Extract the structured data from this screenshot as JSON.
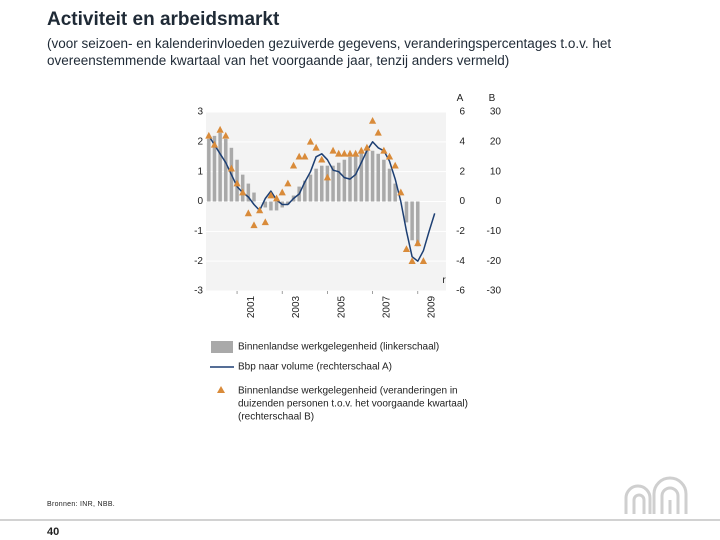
{
  "title": "Activiteit en arbeidsmarkt",
  "subtitle": "(voor seizoen- en kalenderinvloeden gezuiverde gegevens, veranderingspercentages t.o.v. het overeenstemmende kwartaal van het voorgaande jaar, tenzij anders vermeld)",
  "source": "Bronnen: INR, NBB.",
  "page_number": "40",
  "colors": {
    "bars": "#a9a9a9",
    "line": "#1d3f73",
    "markers": "#d98b3a",
    "grid": "#ffffff",
    "plot_bg": "#f3f3f3"
  },
  "chart_data": {
    "type": "bar",
    "x_start": 1999.75,
    "x_step": 0.25,
    "x_ticks": [
      "2001",
      "2003",
      "2005",
      "2007",
      "2009"
    ],
    "left_axis": {
      "ticks": [
        "3",
        "2",
        "1",
        "0",
        "-1",
        "-2",
        "-3"
      ],
      "ylim": [
        -3,
        3
      ]
    },
    "right_axis_a": {
      "header": "A",
      "ticks": [
        "6",
        "4",
        "2",
        "0",
        "-2",
        "-4",
        "-6"
      ],
      "ylim": [
        -6,
        6
      ]
    },
    "right_axis_b": {
      "header": "B",
      "ticks": [
        "30",
        "20",
        "10",
        "0",
        "-10",
        "-20",
        "-30"
      ],
      "ylim": [
        -30,
        30
      ]
    },
    "end_label": "r",
    "series": [
      {
        "name": "Binnenlandse werkgelegenheid (linkerschaal)",
        "type": "bar",
        "axis": "left",
        "values": [
          2.1,
          2.2,
          2.3,
          2.1,
          1.8,
          1.4,
          0.9,
          0.6,
          0.3,
          0.0,
          -0.2,
          -0.3,
          -0.3,
          -0.2,
          -0.1,
          0.2,
          0.5,
          0.7,
          0.9,
          1.1,
          1.2,
          1.2,
          1.2,
          1.3,
          1.4,
          1.5,
          1.6,
          1.7,
          1.8,
          1.7,
          1.6,
          1.4,
          1.1,
          0.6,
          0.0,
          -0.7,
          -1.3,
          -1.5
        ]
      },
      {
        "name": "Bbp naar volume (rechterschaal A)",
        "type": "line",
        "axis": "right_a",
        "values": [
          4.4,
          3.8,
          3.2,
          2.6,
          1.8,
          1.0,
          0.6,
          0.3,
          -0.2,
          -0.6,
          0.2,
          0.7,
          0.1,
          -0.2,
          -0.2,
          0.2,
          0.5,
          1.3,
          2.0,
          3.0,
          3.2,
          2.8,
          2.1,
          2.0,
          1.6,
          1.5,
          1.8,
          2.6,
          3.4,
          4.0,
          3.6,
          3.4,
          2.7,
          1.5,
          0.0,
          -2.0,
          -3.7,
          -4.0,
          -3.3,
          -2.0,
          -0.8
        ]
      },
      {
        "name": "Binnenlandse werkgelegenheid (veranderingen in duizenden personen t.o.v. het voorgaande kwartaal) (rechterschaal B)",
        "type": "scatter",
        "axis": "right_b",
        "values": [
          22,
          19,
          24,
          22,
          11,
          6,
          3,
          -4,
          -8,
          -3,
          -7,
          2,
          1,
          3,
          6,
          12,
          15,
          15,
          20,
          18,
          14,
          8,
          17,
          16,
          16,
          16,
          16,
          17,
          18,
          27,
          23,
          17,
          15,
          12,
          3,
          -16,
          -20,
          -14,
          -20
        ]
      }
    ]
  },
  "legend": {
    "bars_label": "Binnenlandse werkgelegenheid (linkerschaal)",
    "line_label": "Bbp naar volume (rechterschaal A)",
    "markers_label_1": "Binnenlandse werkgelegenheid (veranderingen in",
    "markers_label_2": "duizenden personen t.o.v. het voorgaande kwartaal)",
    "markers_label_3": "(rechterschaal B)"
  }
}
